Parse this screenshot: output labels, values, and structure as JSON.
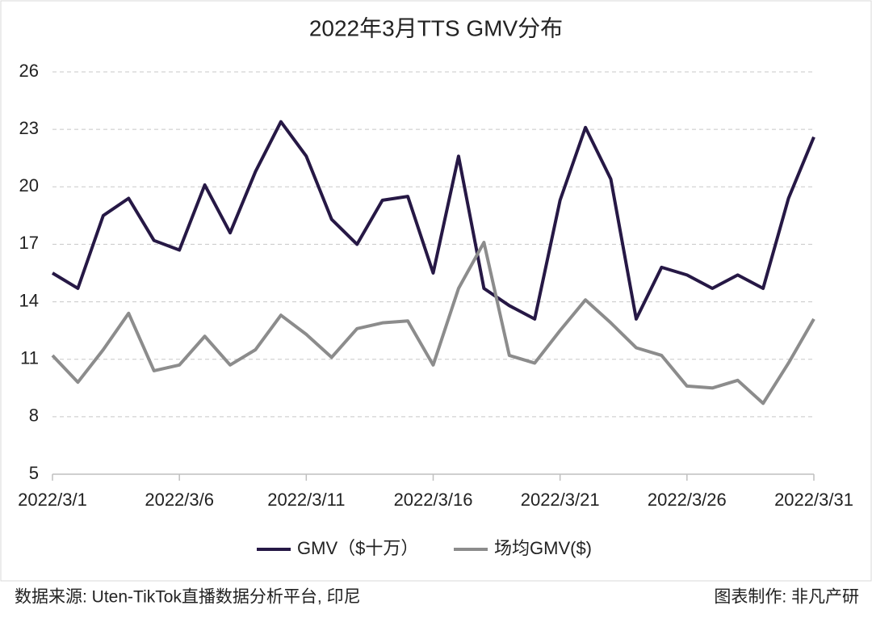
{
  "chart_data": {
    "type": "line",
    "title": "2022年3月TTS GMV分布",
    "categories": [
      "2022/3/1",
      null,
      null,
      null,
      null,
      "2022/3/6",
      null,
      null,
      null,
      null,
      "2022/3/11",
      null,
      null,
      null,
      null,
      "2022/3/16",
      null,
      null,
      null,
      null,
      "2022/3/21",
      null,
      null,
      null,
      null,
      "2022/3/26",
      null,
      null,
      null,
      null,
      "2022/3/31"
    ],
    "series": [
      {
        "name": "GMV（$十万）",
        "color": "#261845",
        "values": [
          15.5,
          14.7,
          18.5,
          19.4,
          17.2,
          16.7,
          20.1,
          17.6,
          20.8,
          23.4,
          21.6,
          18.3,
          17.0,
          19.3,
          19.5,
          15.5,
          21.6,
          14.7,
          13.8,
          13.1,
          19.3,
          23.1,
          20.4,
          13.1,
          15.8,
          15.4,
          14.7,
          15.4,
          14.7,
          19.4,
          22.6
        ]
      },
      {
        "name": "场均GMV($)",
        "color": "#8c8c8c",
        "values": [
          11.2,
          9.8,
          11.5,
          13.4,
          10.4,
          10.7,
          12.2,
          10.7,
          11.5,
          13.3,
          12.3,
          11.1,
          12.6,
          12.9,
          13.0,
          10.7,
          14.7,
          17.1,
          11.2,
          10.8,
          12.5,
          14.1,
          12.9,
          11.6,
          11.2,
          9.6,
          9.5,
          9.9,
          8.7,
          10.8,
          13.1
        ]
      }
    ],
    "ylim": [
      5,
      26
    ],
    "yticks": [
      5,
      8,
      11,
      14,
      17,
      20,
      23,
      26
    ],
    "grid": true,
    "legend": "bottom",
    "source": "数据来源: Uten-TikTok直播数据分析平台, 印尼",
    "credit": "图表制作: 非凡产研"
  }
}
